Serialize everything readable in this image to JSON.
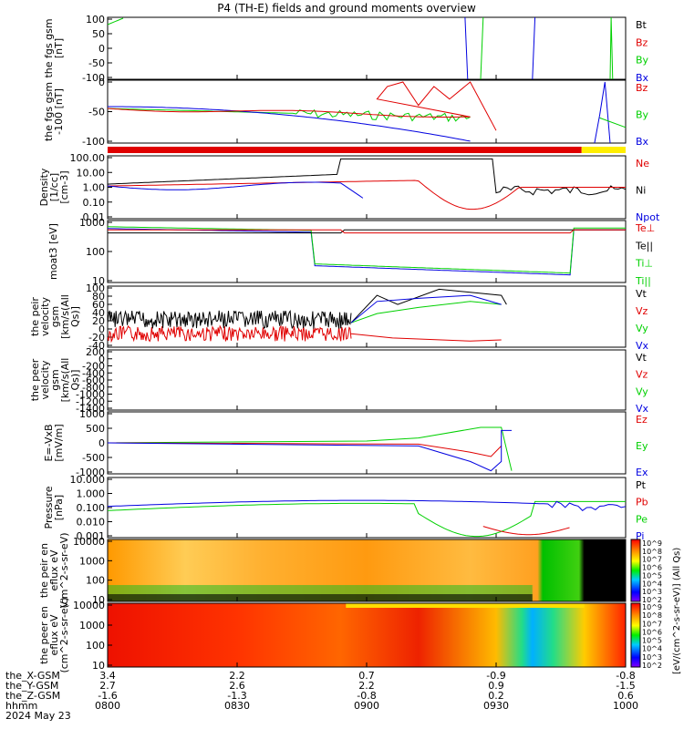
{
  "title": "P4 (TH-E) fields and ground moments overview",
  "date_label": "2024 May 23",
  "colors": {
    "black": "#000000",
    "red": "#e00000",
    "green": "#00d000",
    "blue": "#0000e0",
    "yellow": "#ffee00"
  },
  "bottom_rows": [
    {
      "label": "the_X-GSM",
      "values": [
        "3.4",
        "2.2",
        "0.7",
        "-0.9",
        "-0.8"
      ]
    },
    {
      "label": "the_Y-GSM",
      "values": [
        "2.7",
        "2.6",
        "2.2",
        "0.9",
        "-1.5"
      ]
    },
    {
      "label": "the_Z-GSM",
      "values": [
        "-1.6",
        "-1.3",
        "-0.8",
        "0.2",
        "0.6"
      ]
    },
    {
      "label": "hhmm",
      "values": [
        "0800",
        "0830",
        "0900",
        "0930",
        "1000"
      ]
    }
  ],
  "colorbar": {
    "label": "[eV/(cm^2-s-sr-eV)] (All Qs)",
    "top_ticks": [
      "10^9",
      "10^8",
      "10^7",
      "10^6",
      "10^5",
      "10^4",
      "10^3",
      "10^2"
    ],
    "bottom_ticks": [
      "10^9",
      "10^8",
      "10^7",
      "10^6",
      "10^5",
      "10^4",
      "10^3",
      "10^2"
    ]
  },
  "chart_data": [
    {
      "type": "line",
      "ylabel": "the fgs gsm [nT]",
      "ylim": [
        -100,
        100
      ],
      "yticks": [
        "100",
        "50",
        "0",
        "-50",
        "-100"
      ],
      "series": [
        {
          "name": "Bt",
          "color": "black"
        },
        {
          "name": "Bz",
          "color": "red"
        },
        {
          "name": "By",
          "color": "green"
        },
        {
          "name": "Bx",
          "color": "blue"
        }
      ]
    },
    {
      "type": "line",
      "ylabel": "the fgs gsm -100 [nT]",
      "ylim": [
        -125,
        25
      ],
      "yticks": [
        "0",
        "-50",
        "-100"
      ],
      "series": [
        {
          "name": "Bz",
          "color": "red"
        },
        {
          "name": "By",
          "color": "green"
        },
        {
          "name": "Bx",
          "color": "blue"
        }
      ],
      "mode_bar": [
        {
          "from": "0800",
          "to": "0951",
          "color": "red"
        },
        {
          "from": "0951",
          "to": "1000",
          "color": "yellow"
        }
      ]
    },
    {
      "type": "line",
      "ylabel": "Density [1/cc] [cm-3]",
      "yscale": "log",
      "yticks": [
        "100.00",
        "10.00",
        "1.00",
        "0.10",
        "0.01"
      ],
      "series": [
        {
          "name": "Ne",
          "color": "red"
        },
        {
          "name": "Ni",
          "color": "black"
        },
        {
          "name": "Npot",
          "color": "blue"
        }
      ]
    },
    {
      "type": "line",
      "ylabel": "moat3 [eV]",
      "yscale": "log",
      "yticks": [
        "1000",
        "100",
        "10"
      ],
      "series": [
        {
          "name": "Te⊥",
          "color": "red"
        },
        {
          "name": "Te||",
          "color": "black"
        },
        {
          "name": "Ti⊥",
          "color": "green"
        },
        {
          "name": "Ti||",
          "color": "green"
        }
      ]
    },
    {
      "type": "line",
      "ylabel": "the peir velocity gsm [km/s(All Qs)]",
      "ylim": [
        -40,
        100
      ],
      "yticks": [
        "100",
        "80",
        "60",
        "40",
        "20",
        "0",
        "-20",
        "-40"
      ],
      "series": [
        {
          "name": "Vt",
          "color": "black"
        },
        {
          "name": "Vz",
          "color": "red"
        },
        {
          "name": "Vy",
          "color": "green"
        },
        {
          "name": "Vx",
          "color": "blue"
        }
      ]
    },
    {
      "type": "line",
      "ylabel": "the peer velocity gsm [km/s(All Qs)]",
      "ylim": [
        -1400,
        200
      ],
      "yticks": [
        "200",
        "0",
        "-200",
        "-400",
        "-600",
        "-800",
        "-1000",
        "-1200",
        "-1400"
      ],
      "series": [
        {
          "name": "Vt",
          "color": "black"
        },
        {
          "name": "Vz",
          "color": "red"
        },
        {
          "name": "Vy",
          "color": "green"
        },
        {
          "name": "Vx",
          "color": "blue"
        }
      ]
    },
    {
      "type": "line",
      "ylabel": "E=-VxB [mV/m]",
      "ylim": [
        -1000,
        1000
      ],
      "yticks": [
        "1000",
        "500",
        "0",
        "-500",
        "-1000"
      ],
      "series": [
        {
          "name": "Ez",
          "color": "red"
        },
        {
          "name": "Ey",
          "color": "green"
        },
        {
          "name": "Ex",
          "color": "blue"
        }
      ]
    },
    {
      "type": "line",
      "ylabel": "Pressure [nPa]",
      "yscale": "log",
      "yticks": [
        "10.000",
        "1.000",
        "0.100",
        "0.010",
        "0.001"
      ],
      "series": [
        {
          "name": "Pt",
          "color": "black"
        },
        {
          "name": "Pb",
          "color": "red"
        },
        {
          "name": "Pe",
          "color": "green"
        },
        {
          "name": "Pi",
          "color": "blue"
        }
      ]
    },
    {
      "type": "heatmap",
      "ylabel": "the peir en eflux eV (cm^2-s-sr-eV)",
      "yscale": "log",
      "yticks": [
        "10000",
        "1000",
        "100",
        "10"
      ]
    },
    {
      "type": "heatmap",
      "ylabel": "the peer en eflux eV (cm^2-s-sr-eV)",
      "yscale": "log",
      "yticks": [
        "10000",
        "1000",
        "100",
        "10"
      ]
    }
  ]
}
